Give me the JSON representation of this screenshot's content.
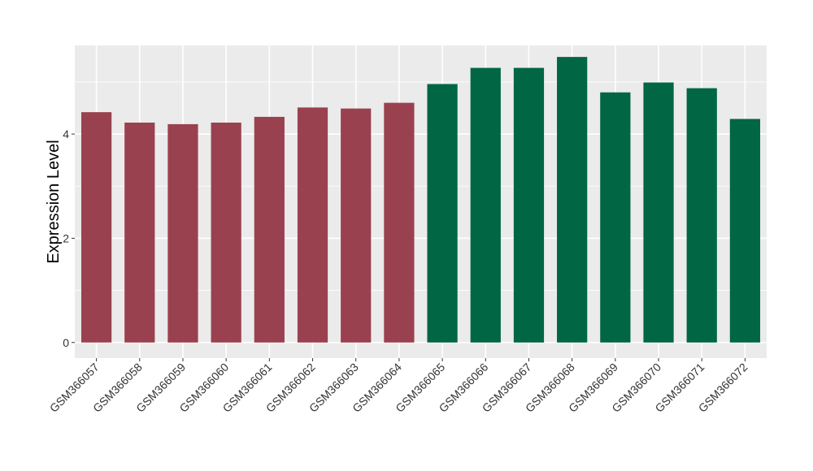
{
  "chart_data": {
    "type": "bar",
    "title": "",
    "xlabel": "",
    "ylabel": "Expression Level",
    "ylim": [
      -0.3,
      5.7
    ],
    "yticks": [
      0,
      2,
      4
    ],
    "grid": true,
    "categories": [
      "GSM366057",
      "GSM366058",
      "GSM366059",
      "GSM366060",
      "GSM366061",
      "GSM366062",
      "GSM366063",
      "GSM366064",
      "GSM366065",
      "GSM366066",
      "GSM366067",
      "GSM366068",
      "GSM366069",
      "GSM366070",
      "GSM366071",
      "GSM366072"
    ],
    "values": [
      4.42,
      4.22,
      4.19,
      4.22,
      4.33,
      4.51,
      4.49,
      4.6,
      4.96,
      5.27,
      5.27,
      5.48,
      4.8,
      4.99,
      4.88,
      4.29
    ],
    "colors": [
      "#9A414F",
      "#9A414F",
      "#9A414F",
      "#9A414F",
      "#9A414F",
      "#9A414F",
      "#9A414F",
      "#9A414F",
      "#006644",
      "#006644",
      "#006644",
      "#006644",
      "#006644",
      "#006644",
      "#006644",
      "#006644"
    ],
    "panel_background": "#EBEBEB",
    "grid_color": "#FFFFFF"
  }
}
